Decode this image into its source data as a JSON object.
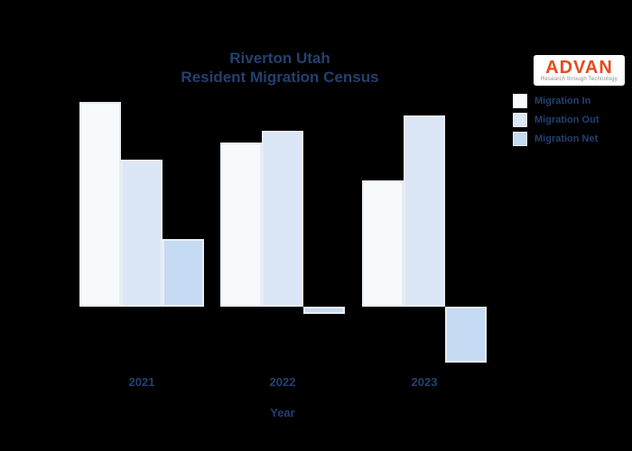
{
  "title": {
    "line1": "Riverton Utah",
    "line2": "Resident Migration Census"
  },
  "logo": {
    "text": "ADVAN",
    "tagline": "Research through Technology",
    "color": "#e8491d"
  },
  "legend": {
    "position": "upper right",
    "items": [
      {
        "label": "Migration In",
        "color": "#f7fafd"
      },
      {
        "label": "Migration Out",
        "color": "#dbe7f7"
      },
      {
        "label": "Migration Net",
        "color": "#c5dbf3"
      }
    ]
  },
  "xaxis": {
    "label": "Year",
    "ticks": [
      "2021",
      "2022",
      "2023"
    ]
  },
  "colors": {
    "background": "#000000",
    "text": "#24406f",
    "bar_edge": "#e9ecf1"
  },
  "chart_data": {
    "type": "bar",
    "title": "Riverton Utah Resident Migration Census",
    "categories": [
      "2021",
      "2022",
      "2023"
    ],
    "series": [
      {
        "name": "Migration In",
        "color": "#f7fafd",
        "values": [
          227,
          182,
          140
        ]
      },
      {
        "name": "Migration Out",
        "color": "#dbe7f7",
        "values": [
          163,
          195,
          212
        ]
      },
      {
        "name": "Migration Net",
        "color": "#c5dbf3",
        "values": [
          75,
          -8,
          -62
        ]
      }
    ],
    "xlabel": "Year",
    "ylabel": "",
    "value_units": "relative bar height (no y-axis scale or gridlines shown)",
    "baseline": 0,
    "grid": false,
    "legend_position": "upper right"
  }
}
